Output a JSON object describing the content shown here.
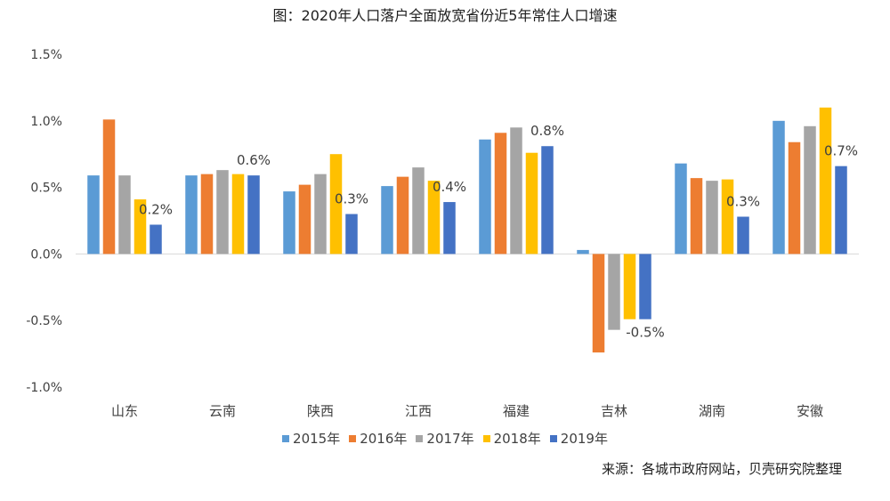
{
  "chart_data": {
    "type": "bar",
    "title": "图：2020年人口落户全面放宽省份近5年常住人口增速",
    "categories": [
      "山东",
      "云南",
      "陕西",
      "江西",
      "福建",
      "吉林",
      "湖南",
      "安徽"
    ],
    "series": [
      {
        "name": "2015年",
        "color": "#5b9bd5",
        "values": [
          0.59,
          0.59,
          0.47,
          0.51,
          0.86,
          0.03,
          0.68,
          1.0
        ]
      },
      {
        "name": "2016年",
        "color": "#ed7d31",
        "values": [
          1.01,
          0.6,
          0.52,
          0.58,
          0.91,
          -0.74,
          0.57,
          0.84
        ]
      },
      {
        "name": "2017年",
        "color": "#a5a5a5",
        "values": [
          0.59,
          0.63,
          0.6,
          0.65,
          0.95,
          -0.57,
          0.55,
          0.96
        ]
      },
      {
        "name": "2018年",
        "color": "#ffc000",
        "values": [
          0.41,
          0.6,
          0.75,
          0.55,
          0.76,
          -0.49,
          0.56,
          1.1
        ]
      },
      {
        "name": "2019年",
        "color": "#4472c4",
        "values": [
          0.22,
          0.59,
          0.3,
          0.39,
          0.81,
          -0.49,
          0.28,
          0.66
        ]
      }
    ],
    "data_labels": [
      "0.2%",
      "0.6%",
      "0.3%",
      "0.4%",
      "0.8%",
      "-0.5%",
      "0.3%",
      "0.7%"
    ],
    "yticks": [
      "1.5%",
      "1.0%",
      "0.5%",
      "0.0%",
      "-0.5%",
      "-1.0%"
    ],
    "ytick_values": [
      1.5,
      1.0,
      0.5,
      0.0,
      -0.5,
      -1.0
    ],
    "ylim": [
      -1.0,
      1.5
    ],
    "grid": false,
    "legend_position": "bottom",
    "source": "来源：各城市政府网站，贝壳研究院整理"
  }
}
